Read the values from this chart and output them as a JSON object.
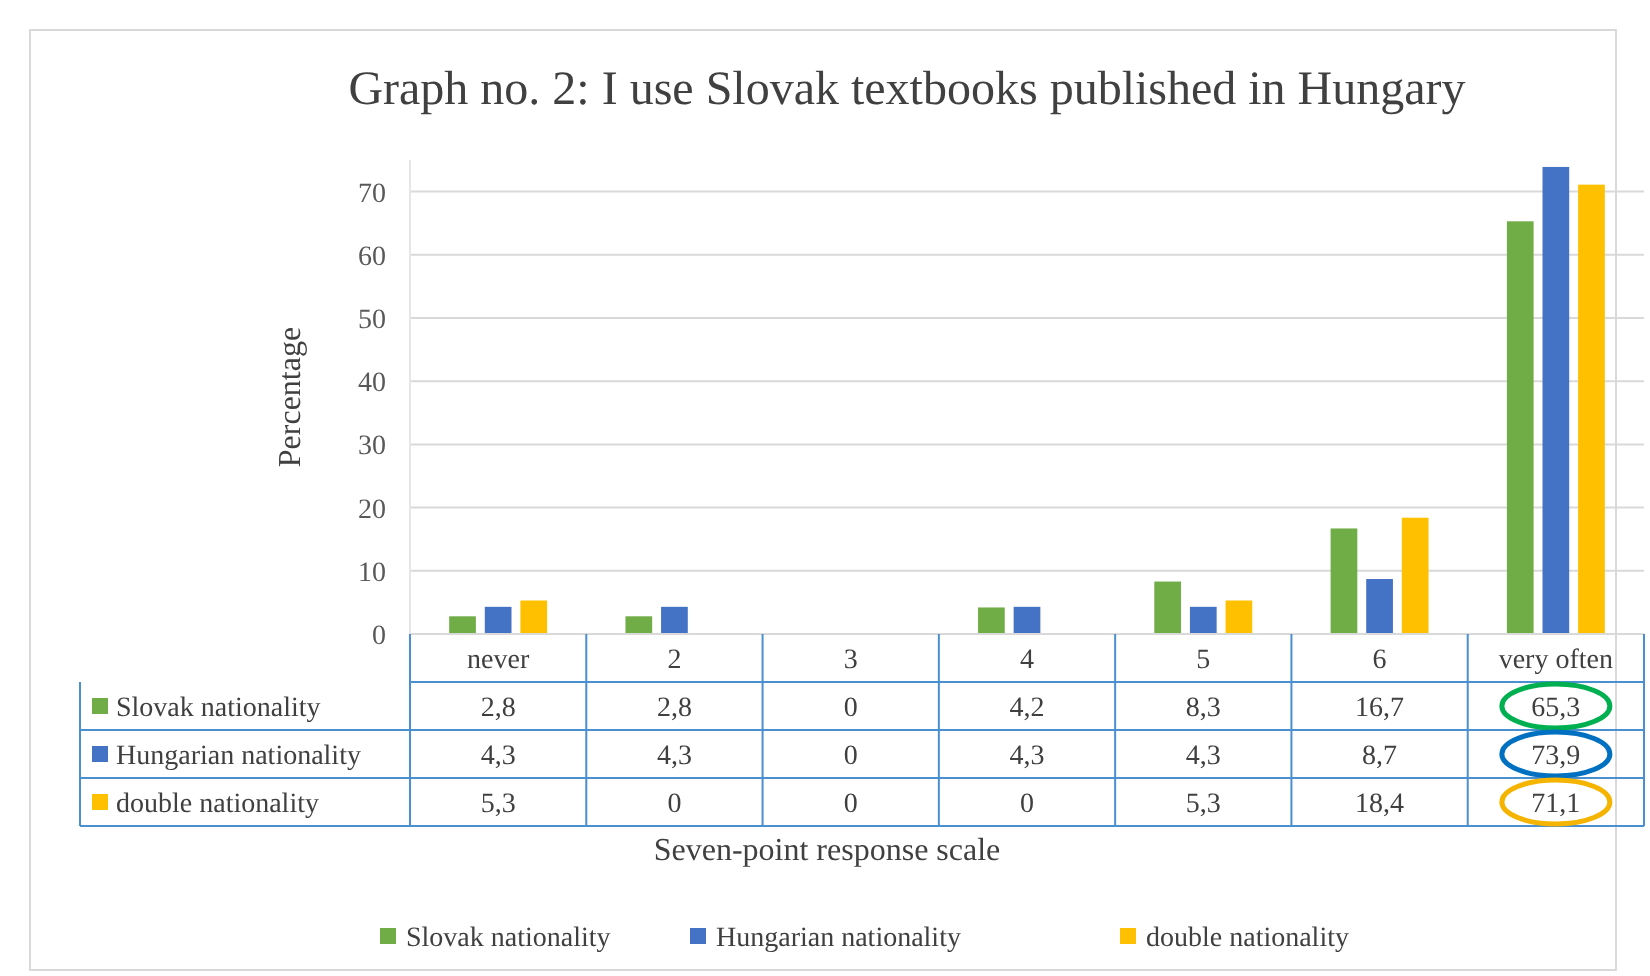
{
  "chart_data": {
    "type": "bar",
    "title": "Graph no. 2: I use Slovak textbooks published in Hungary",
    "xlabel": "Seven-point response scale",
    "ylabel": "Percentage",
    "categories": [
      "never",
      "2",
      "3",
      "4",
      "5",
      "6",
      "very often"
    ],
    "series": [
      {
        "name": "Slovak nationality",
        "color": "#70ad47",
        "values": [
          2.8,
          2.8,
          0,
          4.2,
          8.3,
          16.7,
          65.3
        ],
        "value_labels": [
          "2,8",
          "2,8",
          "0",
          "4,2",
          "8,3",
          "16,7",
          "65,3"
        ]
      },
      {
        "name": "Hungarian nationality",
        "color": "#4472c4",
        "values": [
          4.3,
          4.3,
          0,
          4.3,
          4.3,
          8.7,
          73.9
        ],
        "value_labels": [
          "4,3",
          "4,3",
          "0",
          "4,3",
          "4,3",
          "8,7",
          "73,9"
        ]
      },
      {
        "name": "double nationality",
        "color": "#ffc000",
        "values": [
          5.3,
          0,
          0,
          0,
          5.3,
          18.4,
          71.1
        ],
        "value_labels": [
          "5,3",
          "0",
          "0",
          "0",
          "5,3",
          "18,4",
          "71,1"
        ]
      }
    ],
    "ylim": [
      0,
      75
    ],
    "yticks": [
      0,
      10,
      20,
      30,
      40,
      50,
      60,
      70
    ],
    "grid": "y",
    "legend": "bottom"
  }
}
